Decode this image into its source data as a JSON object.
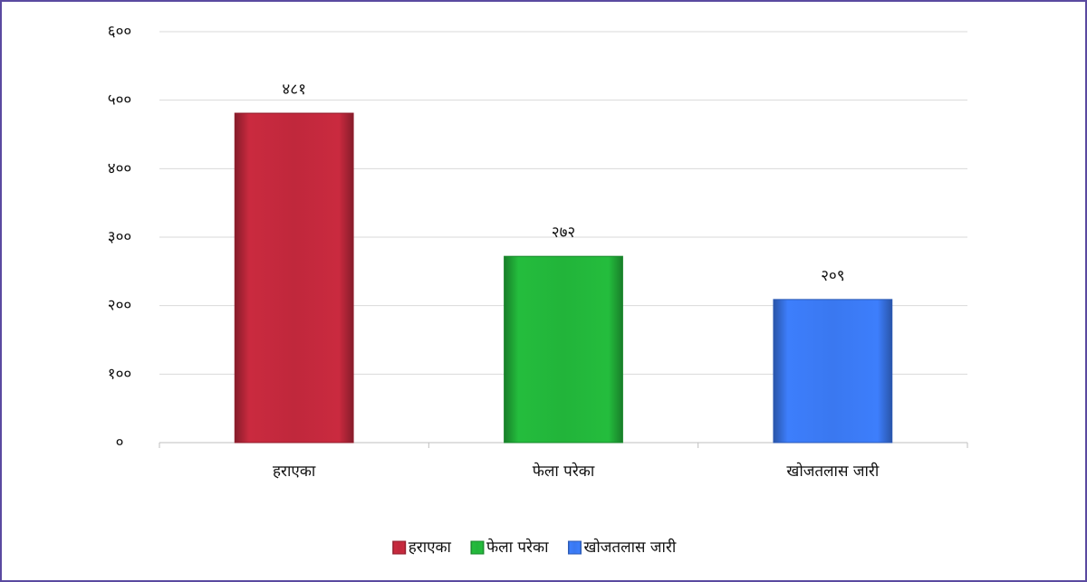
{
  "chart_data": {
    "type": "bar",
    "categories": [
      "हराएका",
      "फेला परेका",
      "खोजतलास जारी"
    ],
    "values": [
      481,
      272,
      209
    ],
    "value_labels": [
      "४८१",
      "२७२",
      "२०९"
    ],
    "colors": [
      "#c0283c",
      "#22b43a",
      "#3a78f0"
    ],
    "ylim": [
      0,
      600
    ],
    "yticks": [
      {
        "value": 0,
        "label": "०"
      },
      {
        "value": 100,
        "label": "१००"
      },
      {
        "value": 200,
        "label": "२००"
      },
      {
        "value": 300,
        "label": "३००"
      },
      {
        "value": 400,
        "label": "४००"
      },
      {
        "value": 500,
        "label": "५००"
      },
      {
        "value": 600,
        "label": "६००"
      }
    ],
    "grid": true,
    "legend": "bottom"
  }
}
